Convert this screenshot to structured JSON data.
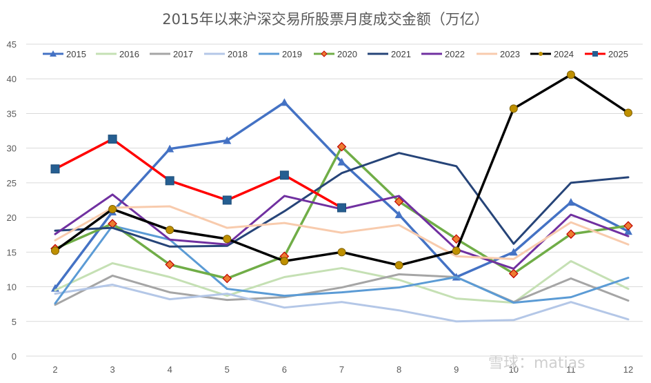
{
  "chart_data": {
    "type": "line",
    "title": "2015年以来沪深交易所股票月度成交金额（万亿）",
    "xlabel": "",
    "ylabel": "",
    "categories": [
      "2",
      "3",
      "4",
      "5",
      "6",
      "7",
      "8",
      "9",
      "10",
      "11",
      "12"
    ],
    "ylim": [
      0,
      45
    ],
    "yticks": [
      "0",
      "5",
      "10",
      "15",
      "20",
      "25",
      "30",
      "35",
      "40",
      "45"
    ],
    "grid": true,
    "legend": "top",
    "series": [
      {
        "name": "2015",
        "color": "#4472C4",
        "marker": "triangle",
        "values": [
          9.8,
          20.8,
          29.9,
          31.1,
          36.6,
          28.0,
          20.4,
          11.4,
          15.0,
          22.2,
          18.0
        ]
      },
      {
        "name": "2016",
        "color": "#C5E0B4",
        "marker": "none",
        "values": [
          9.5,
          13.4,
          11.4,
          8.7,
          11.4,
          12.7,
          11.0,
          8.3,
          7.7,
          13.7,
          9.7
        ]
      },
      {
        "name": "2017",
        "color": "#A5A5A5",
        "marker": "none",
        "values": [
          7.4,
          11.6,
          9.2,
          8.1,
          8.5,
          9.9,
          11.8,
          11.4,
          7.8,
          11.2,
          8.0
        ]
      },
      {
        "name": "2018",
        "color": "#B4C7E7",
        "marker": "none",
        "values": [
          9.0,
          10.3,
          8.2,
          9.0,
          7.0,
          7.8,
          6.6,
          5.0,
          5.2,
          7.8,
          5.3
        ]
      },
      {
        "name": "2019",
        "color": "#5B9BD5",
        "marker": "none",
        "values": [
          7.6,
          18.8,
          16.8,
          9.7,
          8.7,
          9.2,
          9.9,
          11.4,
          7.7,
          8.5,
          11.3
        ]
      },
      {
        "name": "2020",
        "color": "#70AD47",
        "marker": "diamond",
        "values": [
          15.5,
          19.1,
          13.2,
          11.2,
          14.4,
          30.2,
          22.3,
          16.9,
          11.9,
          17.6,
          18.8
        ]
      },
      {
        "name": "2021",
        "color": "#264478",
        "marker": "none",
        "values": [
          18.1,
          18.5,
          15.8,
          15.9,
          20.9,
          26.4,
          29.3,
          27.4,
          16.2,
          25.0,
          25.8
        ]
      },
      {
        "name": "2022",
        "color": "#7030A0",
        "marker": "none",
        "values": [
          17.6,
          23.3,
          16.8,
          16.1,
          23.1,
          21.2,
          23.1,
          15.4,
          12.6,
          20.4,
          17.3
        ]
      },
      {
        "name": "2023",
        "color": "#F8CBAD",
        "marker": "none",
        "values": [
          16.7,
          21.4,
          21.6,
          18.5,
          19.2,
          17.8,
          18.9,
          14.4,
          14.0,
          19.3,
          16.1
        ]
      },
      {
        "name": "2024",
        "color": "#000000",
        "marker": "circle",
        "values": [
          15.2,
          21.2,
          18.2,
          16.9,
          13.7,
          15.0,
          13.1,
          15.2,
          35.7,
          40.6,
          35.1
        ]
      },
      {
        "name": "2025",
        "color": "#FF0000",
        "marker": "square",
        "values": [
          27.0,
          31.3,
          25.3,
          22.5,
          26.1,
          21.4,
          null,
          null,
          null,
          null,
          null
        ]
      }
    ]
  },
  "watermark": "雪球：matias"
}
